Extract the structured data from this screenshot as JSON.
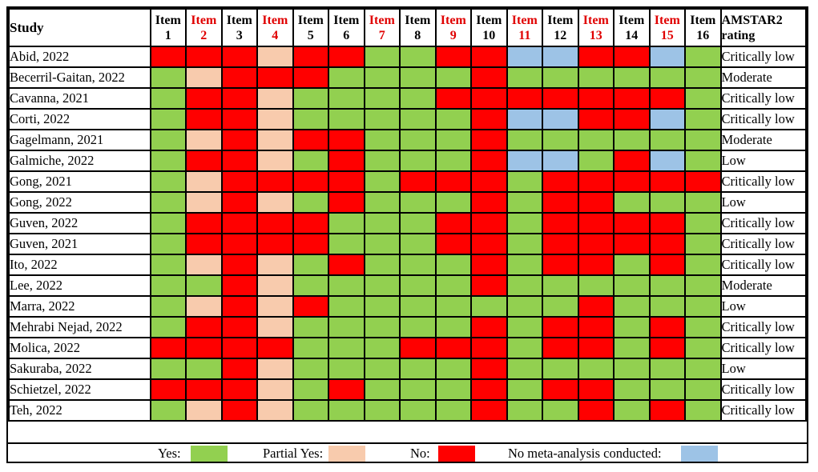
{
  "header": {
    "study": "Study",
    "items": [
      {
        "l1": "Item",
        "l2": "1",
        "critical": false
      },
      {
        "l1": "Item",
        "l2": "2",
        "critical": true
      },
      {
        "l1": "Item",
        "l2": "3",
        "critical": false
      },
      {
        "l1": "Item",
        "l2": "4",
        "critical": true
      },
      {
        "l1": "Item",
        "l2": "5",
        "critical": false
      },
      {
        "l1": "Item",
        "l2": "6",
        "critical": false
      },
      {
        "l1": "Item",
        "l2": "7",
        "critical": true
      },
      {
        "l1": "Item",
        "l2": "8",
        "critical": false
      },
      {
        "l1": "Item",
        "l2": "9",
        "critical": true
      },
      {
        "l1": "Item",
        "l2": "10",
        "critical": false
      },
      {
        "l1": "Item",
        "l2": "11",
        "critical": true
      },
      {
        "l1": "Item",
        "l2": "12",
        "critical": false
      },
      {
        "l1": "Item",
        "l2": "13",
        "critical": true
      },
      {
        "l1": "Item",
        "l2": "14",
        "critical": false
      },
      {
        "l1": "Item",
        "l2": "15",
        "critical": true
      },
      {
        "l1": "Item",
        "l2": "16",
        "critical": false
      }
    ],
    "rating_l1": "AMSTAR2",
    "rating_l2": "rating"
  },
  "rows": [
    {
      "study": "Abid, 2022",
      "cells": [
        "N",
        "N",
        "N",
        "P",
        "N",
        "N",
        "Y",
        "Y",
        "N",
        "N",
        "M",
        "M",
        "N",
        "N",
        "M",
        "Y"
      ],
      "rating": "Critically low"
    },
    {
      "study": "Becerril-Gaitan, 2022",
      "cells": [
        "Y",
        "P",
        "N",
        "N",
        "N",
        "Y",
        "Y",
        "Y",
        "Y",
        "N",
        "Y",
        "Y",
        "Y",
        "Y",
        "Y",
        "Y"
      ],
      "rating": "Moderate"
    },
    {
      "study": "Cavanna, 2021",
      "cells": [
        "Y",
        "N",
        "N",
        "P",
        "Y",
        "Y",
        "Y",
        "Y",
        "N",
        "N",
        "N",
        "N",
        "N",
        "N",
        "N",
        "Y"
      ],
      "rating": "Critically low"
    },
    {
      "study": "Corti, 2022",
      "cells": [
        "Y",
        "N",
        "N",
        "P",
        "Y",
        "Y",
        "Y",
        "Y",
        "Y",
        "N",
        "M",
        "M",
        "N",
        "N",
        "M",
        "Y"
      ],
      "rating": "Critically low"
    },
    {
      "study": "Gagelmann, 2021",
      "cells": [
        "Y",
        "P",
        "N",
        "P",
        "N",
        "N",
        "Y",
        "Y",
        "Y",
        "N",
        "Y",
        "Y",
        "Y",
        "Y",
        "Y",
        "Y"
      ],
      "rating": "Moderate"
    },
    {
      "study": "Galmiche, 2022",
      "cells": [
        "Y",
        "N",
        "N",
        "P",
        "Y",
        "N",
        "Y",
        "Y",
        "Y",
        "N",
        "M",
        "M",
        "Y",
        "N",
        "M",
        "Y"
      ],
      "rating": "Low"
    },
    {
      "study": "Gong, 2021",
      "cells": [
        "Y",
        "P",
        "N",
        "N",
        "N",
        "N",
        "Y",
        "N",
        "N",
        "N",
        "Y",
        "N",
        "N",
        "N",
        "N",
        "N"
      ],
      "rating": "Critically low"
    },
    {
      "study": "Gong, 2022",
      "cells": [
        "Y",
        "P",
        "N",
        "P",
        "Y",
        "N",
        "Y",
        "Y",
        "Y",
        "N",
        "Y",
        "N",
        "N",
        "Y",
        "Y",
        "Y"
      ],
      "rating": "Low"
    },
    {
      "study": "Guven, 2022",
      "cells": [
        "Y",
        "N",
        "N",
        "N",
        "N",
        "Y",
        "Y",
        "Y",
        "N",
        "N",
        "Y",
        "N",
        "N",
        "N",
        "N",
        "Y"
      ],
      "rating": "Critically low"
    },
    {
      "study": "Guven, 2021",
      "cells": [
        "Y",
        "N",
        "N",
        "N",
        "N",
        "Y",
        "Y",
        "Y",
        "N",
        "N",
        "Y",
        "N",
        "N",
        "N",
        "N",
        "Y"
      ],
      "rating": "Critically low"
    },
    {
      "study": "Ito, 2022",
      "cells": [
        "Y",
        "P",
        "N",
        "P",
        "Y",
        "N",
        "Y",
        "Y",
        "Y",
        "N",
        "Y",
        "N",
        "N",
        "Y",
        "N",
        "Y"
      ],
      "rating": "Critically low"
    },
    {
      "study": "Lee, 2022",
      "cells": [
        "Y",
        "Y",
        "N",
        "P",
        "Y",
        "Y",
        "Y",
        "Y",
        "Y",
        "N",
        "Y",
        "Y",
        "Y",
        "Y",
        "Y",
        "Y"
      ],
      "rating": "Moderate"
    },
    {
      "study": "Marra, 2022",
      "cells": [
        "Y",
        "P",
        "N",
        "P",
        "N",
        "Y",
        "Y",
        "Y",
        "Y",
        "Y",
        "Y",
        "Y",
        "N",
        "Y",
        "Y",
        "Y"
      ],
      "rating": "Low"
    },
    {
      "study": "Mehrabi Nejad, 2022",
      "cells": [
        "Y",
        "N",
        "N",
        "P",
        "Y",
        "Y",
        "Y",
        "Y",
        "Y",
        "N",
        "Y",
        "N",
        "N",
        "Y",
        "N",
        "Y"
      ],
      "rating": "Critically low"
    },
    {
      "study": "Molica, 2022",
      "cells": [
        "N",
        "N",
        "N",
        "N",
        "Y",
        "Y",
        "Y",
        "N",
        "N",
        "N",
        "Y",
        "N",
        "N",
        "Y",
        "N",
        "Y"
      ],
      "rating": "Critically low"
    },
    {
      "study": "Sakuraba, 2022",
      "cells": [
        "Y",
        "Y",
        "N",
        "P",
        "Y",
        "Y",
        "Y",
        "Y",
        "Y",
        "N",
        "Y",
        "Y",
        "Y",
        "Y",
        "Y",
        "Y"
      ],
      "rating": "Low"
    },
    {
      "study": "Schietzel,  2022",
      "cells": [
        "N",
        "N",
        "N",
        "P",
        "Y",
        "N",
        "Y",
        "Y",
        "Y",
        "N",
        "Y",
        "N",
        "N",
        "Y",
        "Y",
        "Y"
      ],
      "rating": "Critically low"
    },
    {
      "study": "Teh, 2022",
      "cells": [
        "Y",
        "P",
        "N",
        "P",
        "Y",
        "Y",
        "Y",
        "Y",
        "Y",
        "N",
        "Y",
        "Y",
        "N",
        "Y",
        "N",
        "Y"
      ],
      "rating": "Critically low"
    }
  ],
  "legend": {
    "yes": "Yes:",
    "partial": "Partial Yes:",
    "no": "No:",
    "nma": "No meta-analysis conducted:"
  },
  "colors": {
    "yes": "#92d050",
    "partial": "#f8cbad",
    "no": "#ff0000",
    "nma": "#9dc3e6",
    "critical_header": "#e00000"
  }
}
